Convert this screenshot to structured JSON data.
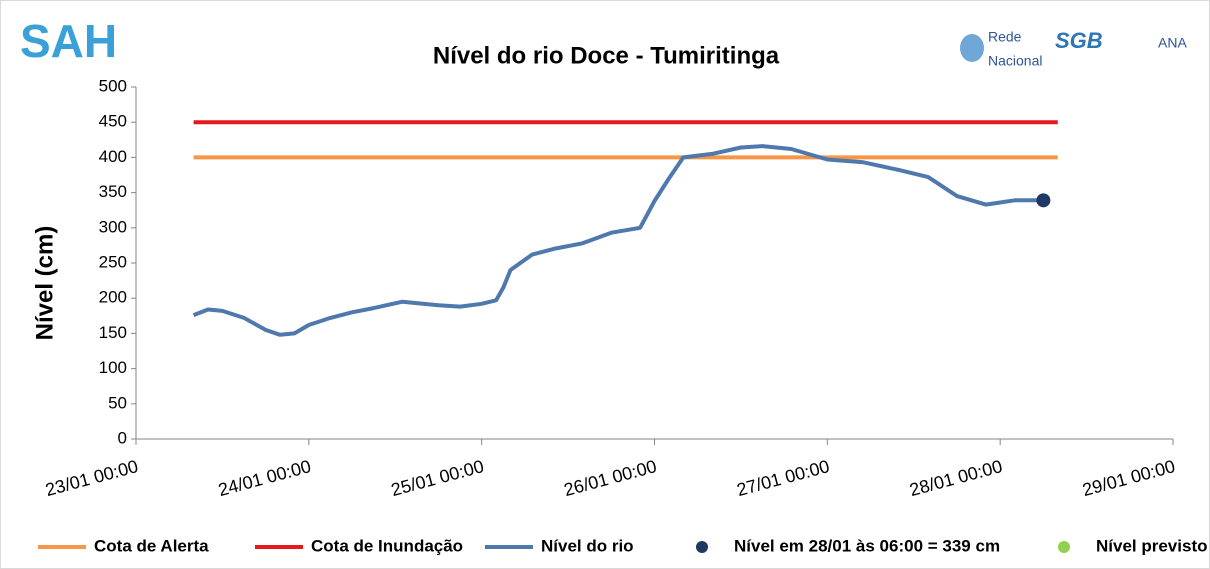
{
  "logos": [
    "SAH",
    "Rede",
    "Nacional",
    "SGB",
    "ANA"
  ],
  "chart_data": {
    "type": "line",
    "title": "Nível do rio Doce - Tumiritinga",
    "y_label": "Nível (cm)",
    "xlim": [
      "23/01 00:00",
      "29/01 00:00"
    ],
    "xticks": [
      "23/01 00:00",
      "24/01 00:00",
      "25/01 00:00",
      "26/01 00:00",
      "27/01 00:00",
      "28/01 00:00",
      "29/01 00:00"
    ],
    "ylim": [
      0,
      500
    ],
    "yticks": [
      0,
      50,
      100,
      150,
      200,
      250,
      300,
      350,
      400,
      450,
      500
    ],
    "grid": false,
    "series": [
      {
        "name": "Cota de Alerta",
        "color": "#f79646",
        "style": "line",
        "x": [
          "23/01 08:00",
          "28/01 08:00"
        ],
        "values": [
          400,
          400
        ]
      },
      {
        "name": "Cota de Inundação",
        "color": "#e5191b",
        "style": "line",
        "x": [
          "23/01 08:00",
          "28/01 08:00"
        ],
        "values": [
          450,
          450
        ]
      },
      {
        "name": "Nível do rio",
        "color": "#4f78ad",
        "style": "line",
        "x": [
          "23/01 08:00",
          "23/01 10:00",
          "23/01 12:00",
          "23/01 15:00",
          "23/01 18:00",
          "23/01 20:00",
          "23/01 22:00",
          "24/01 00:00",
          "24/01 03:00",
          "24/01 06:00",
          "24/01 09:00",
          "24/01 13:00",
          "24/01 18:00",
          "24/01 21:00",
          "25/01 00:00",
          "25/01 02:00",
          "25/01 03:00",
          "25/01 04:00",
          "25/01 07:00",
          "25/01 10:00",
          "25/01 14:00",
          "25/01 18:00",
          "25/01 22:00",
          "26/01 00:00",
          "26/01 02:00",
          "26/01 04:00",
          "26/01 08:00",
          "26/01 12:00",
          "26/01 15:00",
          "26/01 19:00",
          "27/01 00:00",
          "27/01 05:00",
          "27/01 10:00",
          "27/01 14:00",
          "27/01 18:00",
          "27/01 22:00",
          "28/01 00:00",
          "28/01 02:00",
          "28/01 06:00"
        ],
        "values": [
          176,
          184,
          182,
          172,
          155,
          148,
          150,
          162,
          172,
          180,
          186,
          195,
          190,
          188,
          192,
          197,
          215,
          240,
          262,
          270,
          278,
          293,
          300,
          338,
          370,
          400,
          405,
          414,
          416,
          412,
          397,
          393,
          382,
          372,
          345,
          333,
          336,
          339,
          339
        ]
      },
      {
        "name": "Nível em 28/01 às 06:00 = 339 cm",
        "color": "#1f3864",
        "style": "point",
        "x": [
          "28/01 06:00"
        ],
        "values": [
          339
        ]
      },
      {
        "name": "Nível previsto",
        "color": "#92d050",
        "style": "point",
        "x": [],
        "values": []
      }
    ]
  }
}
